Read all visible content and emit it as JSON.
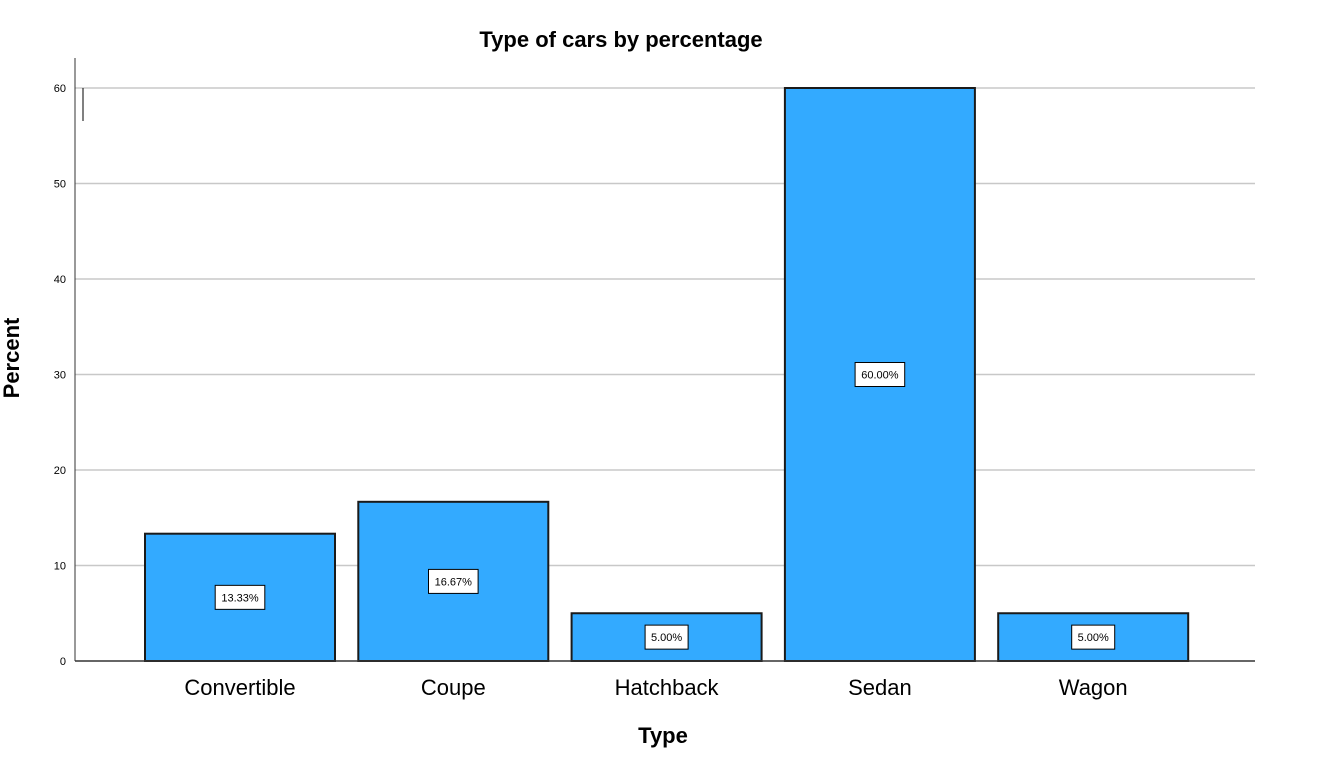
{
  "chart_data": {
    "type": "bar",
    "title": "Type of cars by percentage",
    "xlabel": "Type",
    "ylabel": "Percent",
    "categories": [
      "Convertible",
      "Coupe",
      "Hatchback",
      "Sedan",
      "Wagon"
    ],
    "values": [
      13.33,
      16.67,
      5.0,
      60.0,
      5.0
    ],
    "data_labels": [
      "13.33%",
      "16.67%",
      "5.00%",
      "60.00%",
      "5.00%"
    ],
    "y_ticks": [
      0,
      10,
      20,
      30,
      40,
      50,
      60
    ],
    "ylim": [
      0,
      60
    ],
    "grid": "horizontal",
    "bar_color": "#33aaff",
    "bar_edge_color": "#1a1a1a",
    "grid_color": "#c8c8c8"
  }
}
